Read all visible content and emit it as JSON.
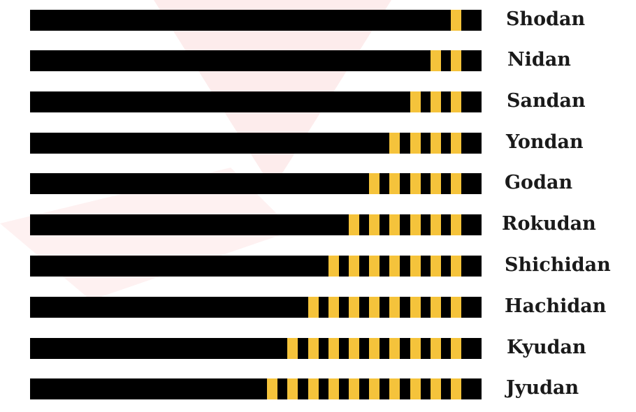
{
  "colors": {
    "belt": "#000000",
    "stripe": "#F5C33B",
    "label": "#1a1a1a",
    "watermark": "#fde7e7"
  },
  "ranks": [
    {
      "name": "Shodan",
      "stripes": 1
    },
    {
      "name": "Nidan",
      "stripes": 2
    },
    {
      "name": "Sandan",
      "stripes": 3
    },
    {
      "name": "Yondan",
      "stripes": 4
    },
    {
      "name": "Godan",
      "stripes": 5
    },
    {
      "name": "Rokudan",
      "stripes": 6
    },
    {
      "name": "Shichidan",
      "stripes": 7
    },
    {
      "name": "Hachidan",
      "stripes": 8
    },
    {
      "name": "Kyudan",
      "stripes": 9
    },
    {
      "name": "Jyudan",
      "stripes": 10
    }
  ]
}
